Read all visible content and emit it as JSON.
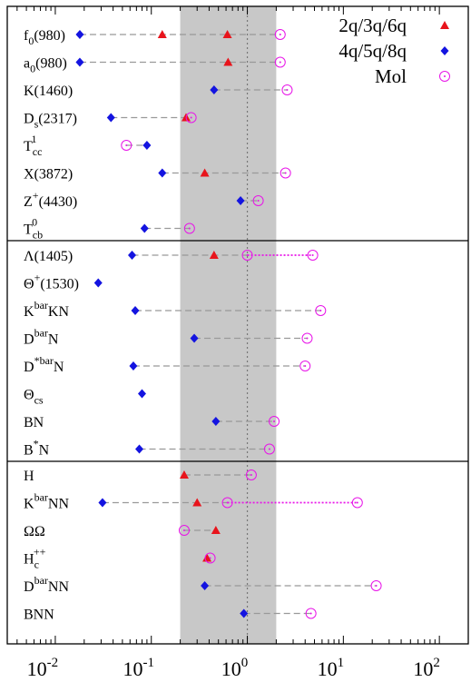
{
  "chart_data": {
    "type": "scatter",
    "x_scale": "log",
    "xlim": [
      0.00316,
      200.0
    ],
    "shaded_band": [
      0.2,
      2.0
    ],
    "reference_line_x": 1.0,
    "x_tick_labels": [
      {
        "value": 0.01,
        "base": "10",
        "exp": "-2"
      },
      {
        "value": 0.1,
        "base": "10",
        "exp": "-1"
      },
      {
        "value": 1,
        "base": "10",
        "exp": "0"
      },
      {
        "value": 10,
        "base": "10",
        "exp": "1"
      },
      {
        "value": 100,
        "base": "10",
        "exp": "2"
      }
    ],
    "legend": [
      {
        "id": "2q",
        "label": "2q/3q/6q",
        "color": "#e8141c",
        "marker": "triangle"
      },
      {
        "id": "4q",
        "label": "4q/5q/8q",
        "color": "#1414e0",
        "marker": "diamond"
      },
      {
        "id": "mol",
        "label": "Mol",
        "color": "#e814e8",
        "marker": "circle"
      }
    ],
    "groups": [
      {
        "rows": [
          {
            "base": "f",
            "sub": "0",
            "sup": "",
            "rest": "(980)",
            "q2": 0.13,
            "q4": 0.018,
            "mol": 2.2,
            "extra_q2": 0.62,
            "solid": null
          },
          {
            "base": "a",
            "sub": "0",
            "sup": "",
            "rest": "(980)",
            "q2": 0.63,
            "q4": 0.018,
            "mol": 2.2,
            "extra_q2": null,
            "solid": null
          },
          {
            "base": "K(1460)",
            "sub": "",
            "sup": "",
            "rest": "",
            "q2": null,
            "q4": 0.45,
            "mol": 2.6,
            "extra_q2": null,
            "solid": null
          },
          {
            "base": "D",
            "sub": "s",
            "sup": "",
            "rest": "(2317)",
            "q2": 0.23,
            "q4": 0.038,
            "mol": 0.26,
            "extra_q2": null,
            "solid": null
          },
          {
            "base": "T",
            "sub": "cc",
            "sup": "1",
            "rest": "",
            "q2": null,
            "q4": 0.09,
            "mol": 0.055,
            "extra_q2": null,
            "solid": null
          },
          {
            "base": "X(3872)",
            "sub": "",
            "sup": "",
            "rest": "",
            "q2": 0.36,
            "q4": 0.13,
            "mol": 2.5,
            "extra_q2": null,
            "solid": null
          },
          {
            "base": "Z",
            "sub": "",
            "sup": "+",
            "rest": "(4430)",
            "q2": null,
            "q4": 0.85,
            "mol": 1.3,
            "extra_q2": null,
            "solid": null
          },
          {
            "base": "T",
            "sub": "cb",
            "sup": "0",
            "rest": "",
            "q2": null,
            "q4": 0.085,
            "mol": 0.25,
            "extra_q2": null,
            "solid": null
          }
        ]
      },
      {
        "rows": [
          {
            "base": "Λ(1405)",
            "sub": "",
            "sup": "",
            "rest": "",
            "q2": 0.45,
            "q4": 0.063,
            "mol": 1.0,
            "mol2": 4.8,
            "extra_q2": null,
            "solid": [
              1.0,
              4.8
            ]
          },
          {
            "base": "Θ",
            "sub": "",
            "sup": "+",
            "rest": "(1530)",
            "q2": null,
            "q4": 0.028,
            "mol": null,
            "extra_q2": null,
            "solid": null
          },
          {
            "base": "K",
            "sub": "",
            "sup": "bar",
            "rest": "KN",
            "q2": null,
            "q4": 0.068,
            "mol": 5.8,
            "extra_q2": null,
            "solid": null
          },
          {
            "base": "D",
            "sub": "",
            "sup": "bar",
            "rest": "N",
            "q2": null,
            "q4": 0.28,
            "mol": 4.2,
            "extra_q2": null,
            "solid": null
          },
          {
            "base": "D",
            "sub": "",
            "sup": "*bar",
            "rest": "N",
            "q2": null,
            "q4": 0.065,
            "mol": 4.0,
            "extra_q2": null,
            "solid": null
          },
          {
            "base": "Θ",
            "sub": "cs",
            "sup": "",
            "rest": "",
            "q2": null,
            "q4": 0.08,
            "mol": null,
            "extra_q2": null,
            "solid": null
          },
          {
            "base": "BN",
            "sub": "",
            "sup": "",
            "rest": "",
            "q2": null,
            "q4": 0.47,
            "mol": 1.9,
            "extra_q2": null,
            "solid": null
          },
          {
            "base": "B",
            "sub": "",
            "sup": "*",
            "rest": "N",
            "q2": null,
            "q4": 0.075,
            "mol": 1.7,
            "extra_q2": null,
            "solid": null
          }
        ]
      },
      {
        "rows": [
          {
            "base": "H",
            "sub": "",
            "sup": "",
            "rest": "",
            "q2": 0.22,
            "q4": null,
            "mol": 1.1,
            "extra_q2": null,
            "solid": null
          },
          {
            "base": "K",
            "sub": "",
            "sup": "bar",
            "rest": "NN",
            "q2": 0.3,
            "q4": 0.031,
            "mol": 0.62,
            "mol2": 14,
            "extra_q2": null,
            "solid": [
              0.62,
              14
            ]
          },
          {
            "base": "ΩΩ",
            "sub": "",
            "sup": "",
            "rest": "",
            "q2": 0.47,
            "q4": null,
            "mol": 0.22,
            "extra_q2": null,
            "solid": null
          },
          {
            "base": "H",
            "sub": "c",
            "sup": "++",
            "rest": "",
            "q2": 0.38,
            "q4": null,
            "mol": 0.41,
            "extra_q2": null,
            "solid": null
          },
          {
            "base": "D",
            "sub": "",
            "sup": "bar",
            "rest": "NN",
            "q2": null,
            "q4": 0.36,
            "mol": 22,
            "extra_q2": null,
            "solid": null
          },
          {
            "base": "BNN",
            "sub": "",
            "sup": "",
            "rest": "",
            "q2": null,
            "q4": 0.92,
            "mol": 4.6,
            "extra_q2": null,
            "solid": null
          }
        ]
      }
    ]
  }
}
